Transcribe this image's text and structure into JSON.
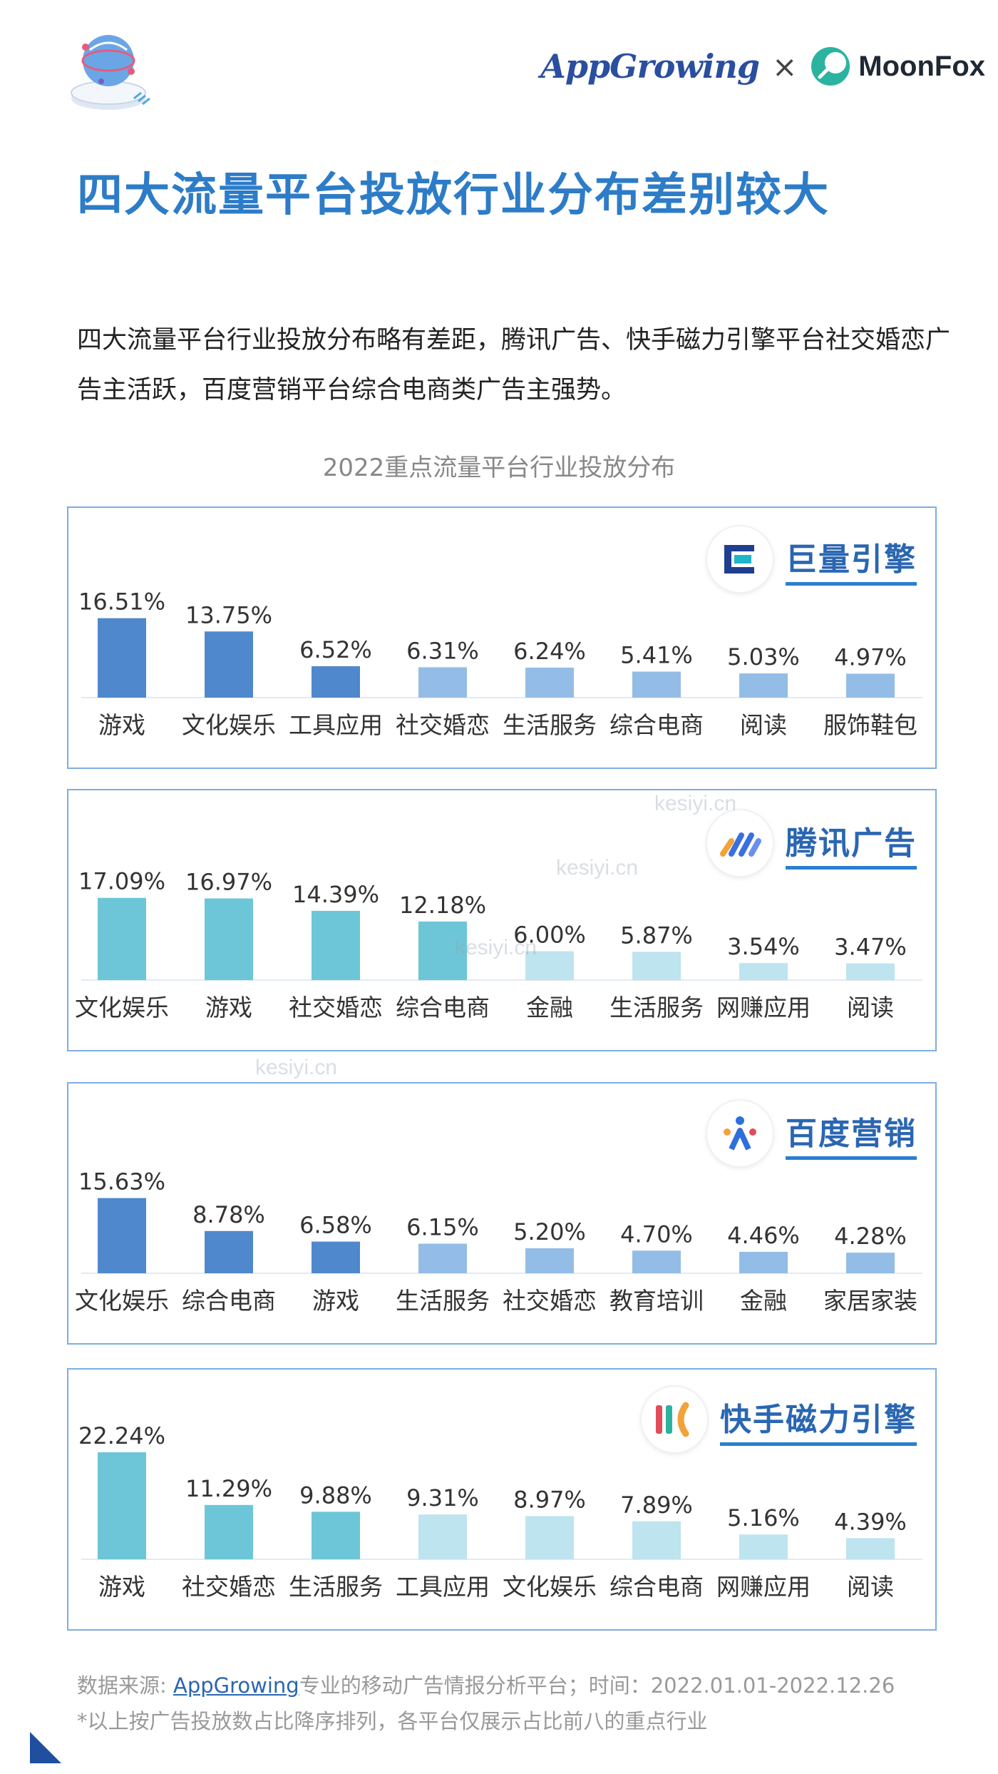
{
  "brand": {
    "appgrowing": "AppGrowing",
    "times": "×",
    "moonfox": "MoonFox",
    "logo_icon": "globe-network-icon"
  },
  "page_title": "四大流量平台投放行业分布差别较大",
  "intro": "四大流量平台行业投放分布略有差距，腾讯广告、快手磁力引擎平台社交婚恋广告主活跃，百度营销平台综合电商类广告主强势。",
  "chart_heading": "2022重点流量平台行业投放分布",
  "watermark": "kesiyi.cn",
  "chart_data": [
    {
      "type": "bar",
      "platform": "巨量引擎",
      "icon": "juliang-engine-icon",
      "categories": [
        "游戏",
        "文化娱乐",
        "工具应用",
        "社交婚恋",
        "生活服务",
        "综合电商",
        "阅读",
        "服饰鞋包"
      ],
      "values": [
        16.51,
        13.75,
        6.52,
        6.31,
        6.24,
        5.41,
        5.03,
        4.97
      ],
      "labels": [
        "16.51%",
        "13.75%",
        "6.52%",
        "6.31%",
        "6.24%",
        "5.41%",
        "5.03%",
        "4.97%"
      ],
      "colors": [
        "#4f88cc",
        "#4f88cc",
        "#4f88cc",
        "#93bde6",
        "#93bde6",
        "#93bde6",
        "#93bde6",
        "#93bde6"
      ]
    },
    {
      "type": "bar",
      "platform": "腾讯广告",
      "icon": "tencent-ads-icon",
      "categories": [
        "文化娱乐",
        "游戏",
        "社交婚恋",
        "综合电商",
        "金融",
        "生活服务",
        "网赚应用",
        "阅读"
      ],
      "values": [
        17.09,
        16.97,
        14.39,
        12.18,
        6.0,
        5.87,
        3.54,
        3.47
      ],
      "labels": [
        "17.09%",
        "16.97%",
        "14.39%",
        "12.18%",
        "6.00%",
        "5.87%",
        "3.54%",
        "3.47%"
      ],
      "colors": [
        "#6dc6d8",
        "#6dc6d8",
        "#6dc6d8",
        "#6dc6d8",
        "#bde4ef",
        "#bde4ef",
        "#bde4ef",
        "#bde4ef"
      ]
    },
    {
      "type": "bar",
      "platform": "百度营销",
      "icon": "baidu-marketing-icon",
      "categories": [
        "文化娱乐",
        "综合电商",
        "游戏",
        "生活服务",
        "社交婚恋",
        "教育培训",
        "金融",
        "家居家装"
      ],
      "values": [
        15.63,
        8.78,
        6.58,
        6.15,
        5.2,
        4.7,
        4.46,
        4.28
      ],
      "labels": [
        "15.63%",
        "8.78%",
        "6.58%",
        "6.15%",
        "5.20%",
        "4.70%",
        "4.46%",
        "4.28%"
      ],
      "colors": [
        "#4f88cc",
        "#4f88cc",
        "#4f88cc",
        "#93bde6",
        "#93bde6",
        "#93bde6",
        "#93bde6",
        "#93bde6"
      ]
    },
    {
      "type": "bar",
      "platform": "快手磁力引擎",
      "icon": "kuaishou-magnetic-icon",
      "categories": [
        "游戏",
        "社交婚恋",
        "生活服务",
        "工具应用",
        "文化娱乐",
        "综合电商",
        "网赚应用",
        "阅读"
      ],
      "values": [
        22.24,
        11.29,
        9.88,
        9.31,
        8.97,
        7.89,
        5.16,
        4.39
      ],
      "labels": [
        "22.24%",
        "11.29%",
        "9.88%",
        "9.31%",
        "8.97%",
        "7.89%",
        "5.16%",
        "4.39%"
      ],
      "colors": [
        "#6dc6d8",
        "#6dc6d8",
        "#6dc6d8",
        "#bde4ef",
        "#bde4ef",
        "#bde4ef",
        "#bde4ef",
        "#bde4ef"
      ]
    }
  ],
  "footnote": {
    "source_prefix": "数据来源: ",
    "source_link": "AppGrowing",
    "source_suffix": "专业的移动广告情报分析平台；时间：2022.01.01-2022.12.26",
    "note": "*以上按广告投放数占比降序排列，各平台仅展示占比前八的重点行业"
  },
  "colors": {
    "title": "#2d7cc8",
    "panel_border": "#7eaee0",
    "badge_text": "#2a66b2",
    "corner": "#1f4f9e"
  }
}
